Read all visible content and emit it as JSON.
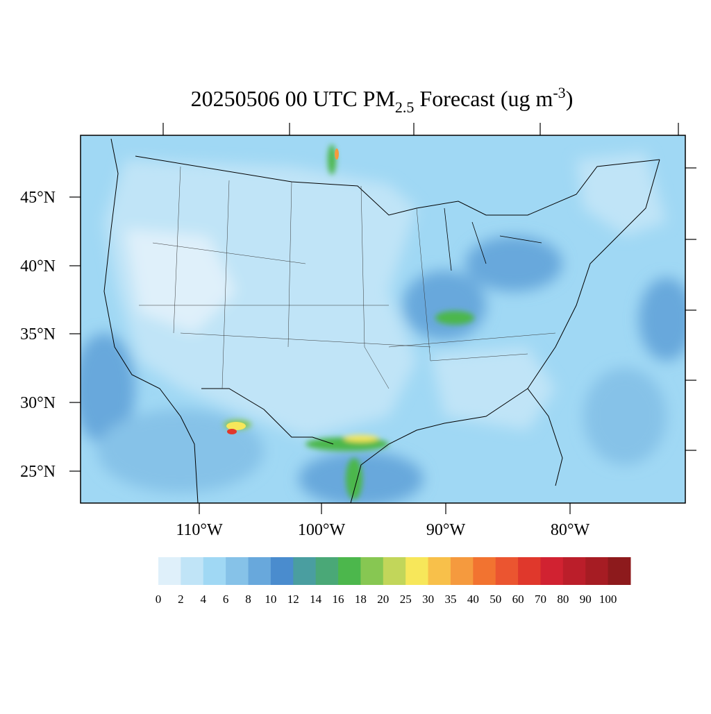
{
  "title": {
    "main": "20250506 00 UTC PM",
    "sub": "2.5",
    "mid": " Forecast (ug m",
    "sup": "-3",
    "end": ")"
  },
  "lat_labels": [
    "45°N",
    "40°N",
    "35°N",
    "30°N",
    "25°N"
  ],
  "lon_labels": [
    "110°W",
    "100°W",
    "90°W",
    "80°W"
  ],
  "colorbar": {
    "levels": [
      0,
      2,
      4,
      6,
      8,
      10,
      12,
      14,
      16,
      18,
      20,
      25,
      30,
      35,
      40,
      50,
      60,
      70,
      80,
      90,
      100
    ],
    "colors": [
      "#dff0fa",
      "#c0e4f7",
      "#a0d8f4",
      "#86c2e8",
      "#68a8dc",
      "#4a8cce",
      "#4a9ea0",
      "#4aa877",
      "#4cb74c",
      "#87c752",
      "#c2d65a",
      "#f7e75a",
      "#f8c04a",
      "#f59a3e",
      "#f27330",
      "#eb5530",
      "#e0382c",
      "#d12231",
      "#bb1e2a",
      "#a61c23",
      "#8d1a1c"
    ]
  }
}
